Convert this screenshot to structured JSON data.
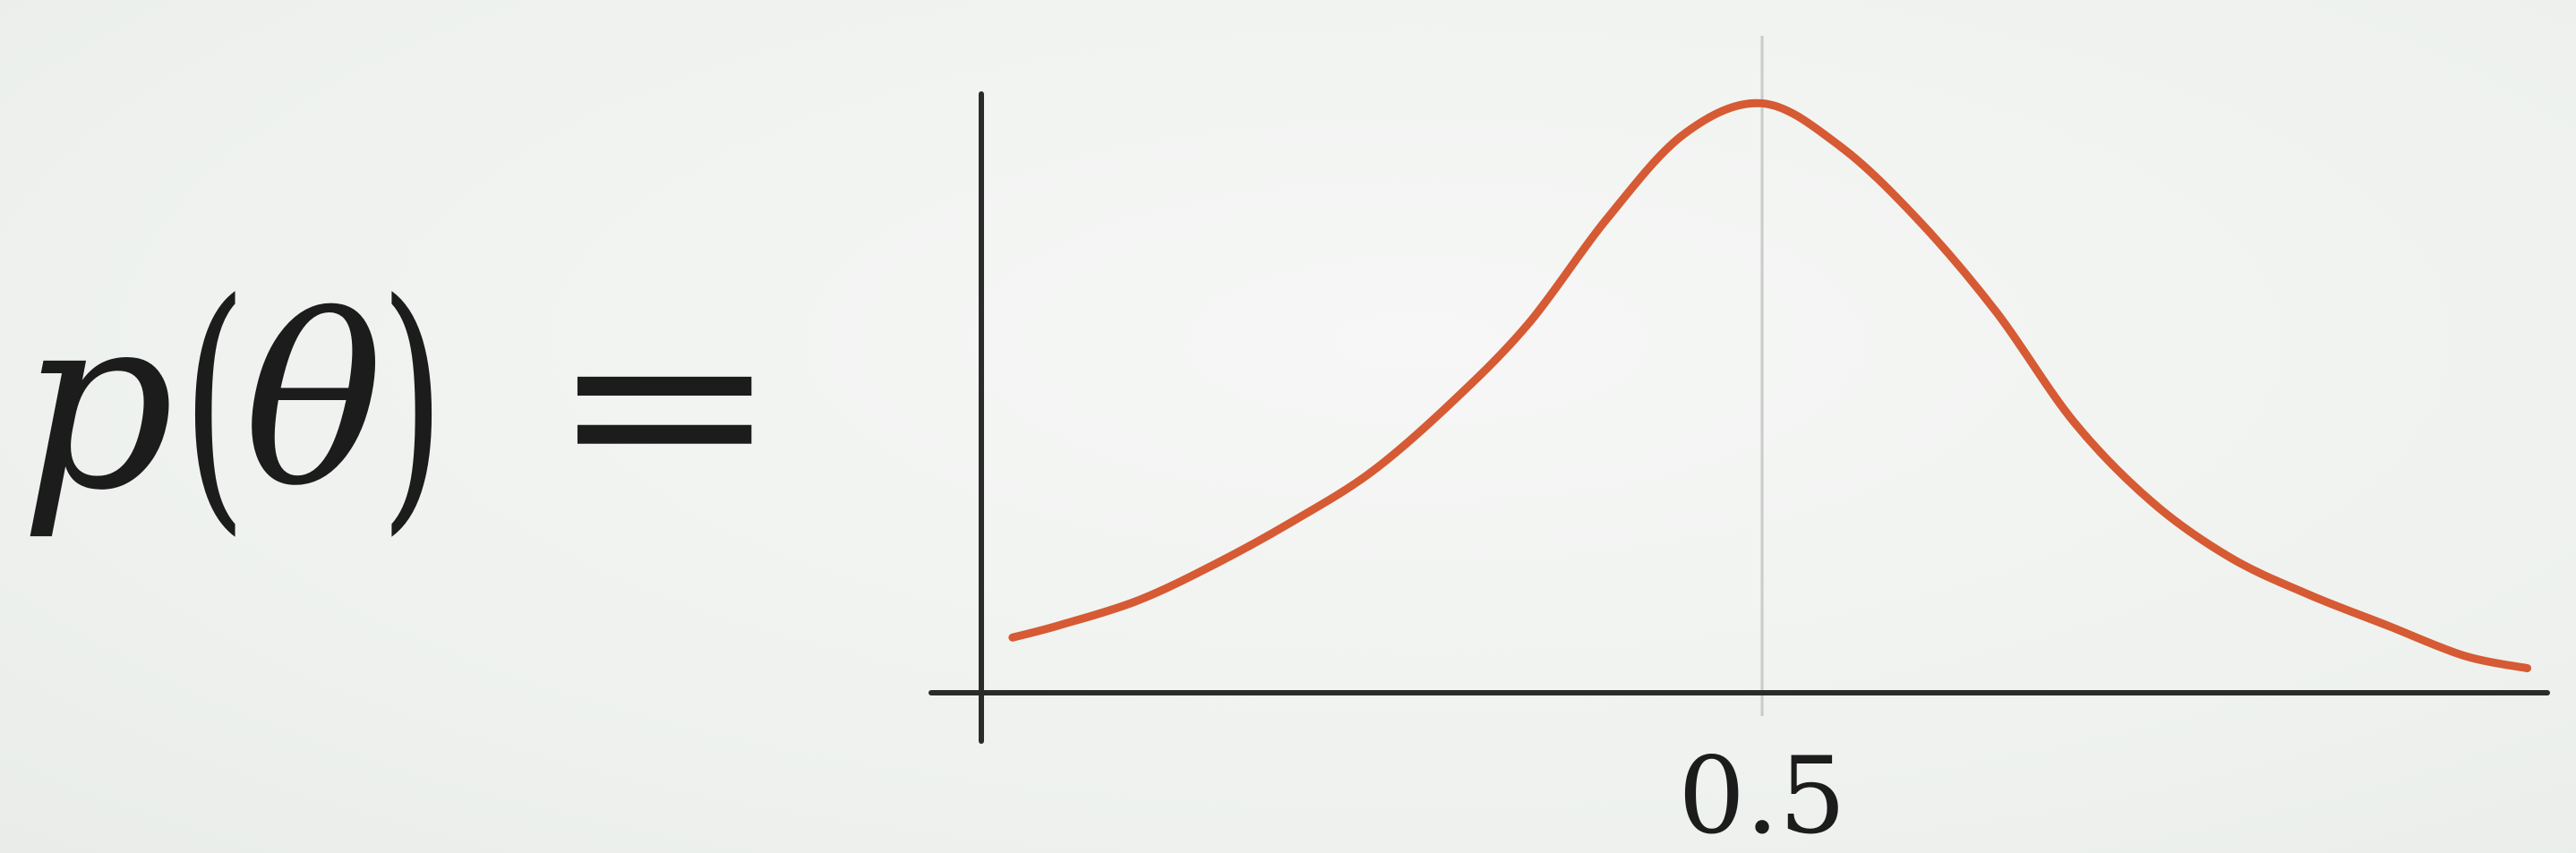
{
  "formula": {
    "function_name": "p",
    "open_paren": "(",
    "variable": "θ",
    "close_paren": ")",
    "equals": "="
  },
  "chart_data": {
    "type": "line",
    "title": "",
    "xlabel": "",
    "ylabel": "",
    "xlim": [
      0,
      1
    ],
    "ylim": [
      0,
      1
    ],
    "grid": false,
    "x_ticks": [
      {
        "value": 0.5,
        "label": "0.5"
      }
    ],
    "vertical_reference_line": 0.5,
    "series": [
      {
        "color": "#d65a33",
        "x": [
          0.02,
          0.05,
          0.1,
          0.15,
          0.2,
          0.25,
          0.3,
          0.35,
          0.4,
          0.45,
          0.5,
          0.55,
          0.6,
          0.65,
          0.7,
          0.75,
          0.8,
          0.85,
          0.9,
          0.95,
          0.99
        ],
        "y": [
          0.09,
          0.11,
          0.15,
          0.21,
          0.28,
          0.36,
          0.47,
          0.6,
          0.77,
          0.91,
          0.96,
          0.89,
          0.77,
          0.62,
          0.44,
          0.31,
          0.22,
          0.16,
          0.11,
          0.06,
          0.04
        ]
      }
    ],
    "axis_color": "#2b2b2b",
    "reference_line_color": "#c9cbc9"
  }
}
